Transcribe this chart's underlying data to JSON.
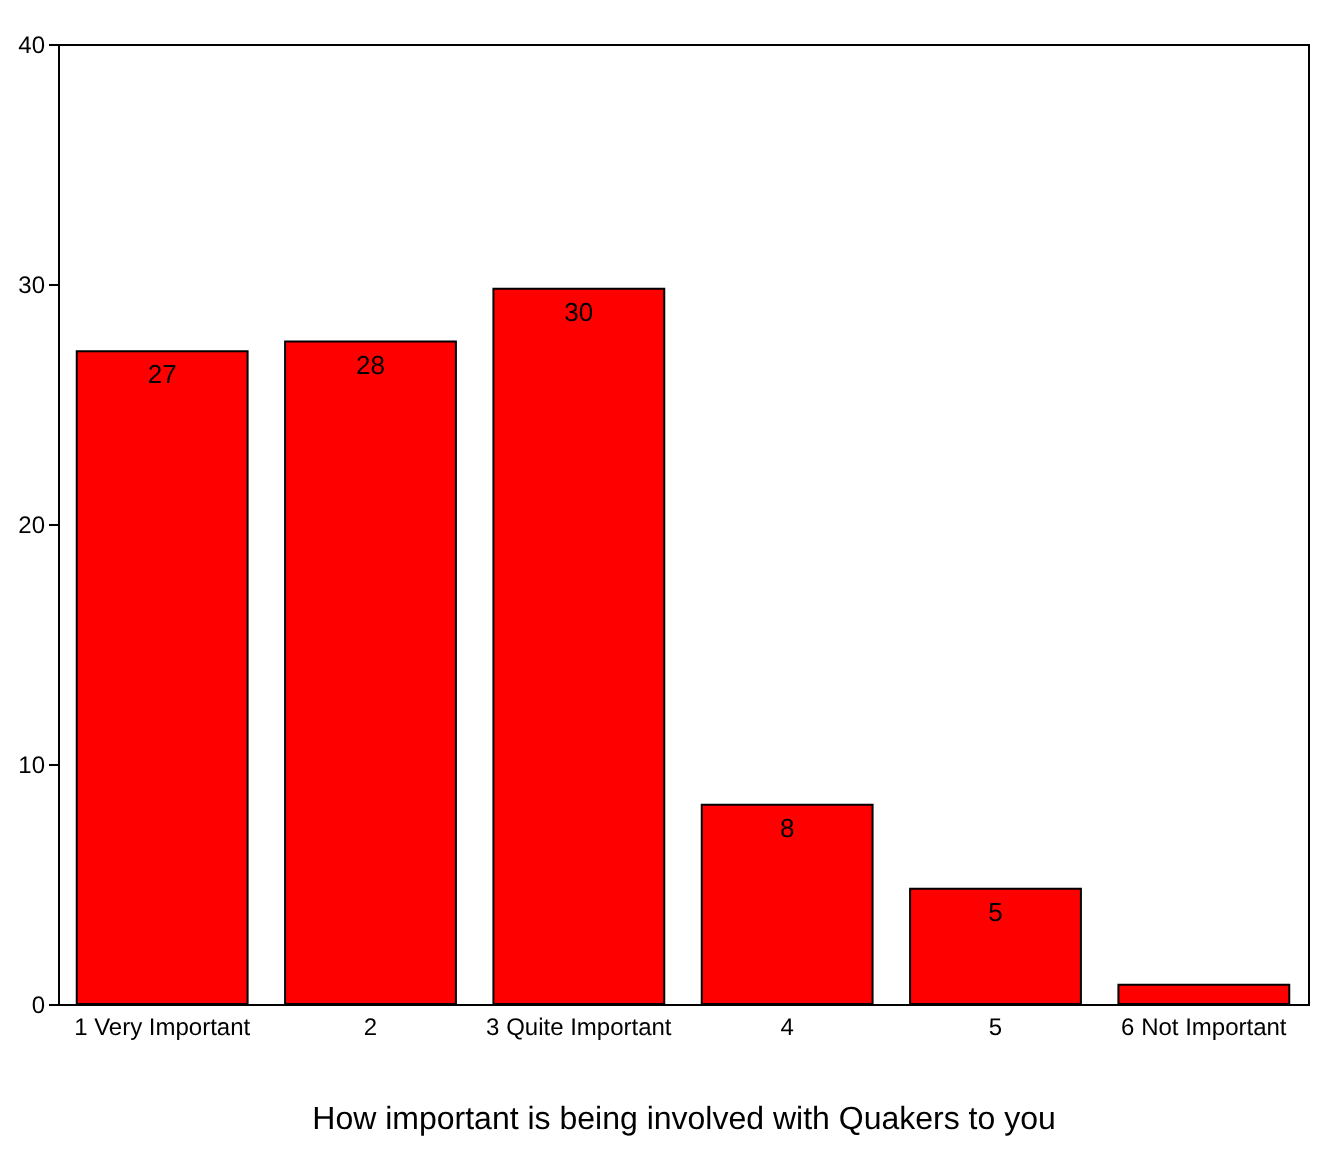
{
  "chart_data": {
    "type": "bar",
    "xlabel": "How important is being involved with Quakers to you",
    "categories": [
      "1 Very Important",
      "2",
      "3 Quite Important",
      "4",
      "5",
      "6 Not Important"
    ],
    "values": [
      27.2,
      27.6,
      29.8,
      8.3,
      4.8,
      0.8
    ],
    "value_labels": [
      "27",
      "28",
      "30",
      "8",
      "5",
      null
    ],
    "color": "#ff0000",
    "ylim": [
      0,
      40
    ],
    "yticks": [
      0,
      10,
      20,
      30,
      40
    ],
    "grid": false
  }
}
